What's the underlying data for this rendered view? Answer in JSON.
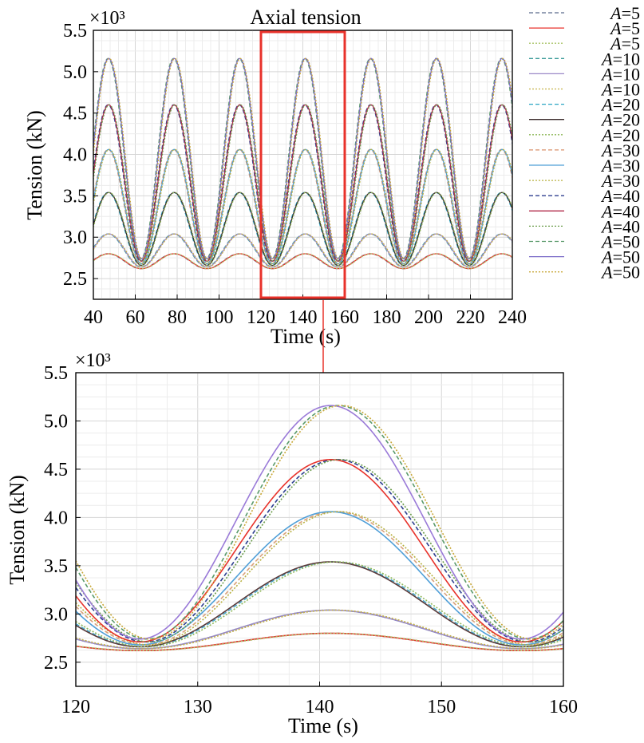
{
  "chart_data": [
    {
      "type": "line",
      "panel": "overview",
      "title": "Axial tension",
      "xlabel": "Time (s)",
      "ylabel": "Tension (kN)",
      "y_multiplier": "×10³",
      "xlim": [
        40,
        240
      ],
      "ylim": [
        2.25,
        5.5
      ],
      "xticks": [
        40,
        60,
        80,
        100,
        120,
        140,
        160,
        180,
        200,
        220,
        240
      ],
      "yticks": [
        2.5,
        3.0,
        3.5,
        4.0,
        4.5,
        5.0,
        5.5
      ],
      "ytick_labels": [
        "2.5",
        "3.0",
        "3.5",
        "4.0",
        "4.5",
        "5.0",
        "5.5"
      ],
      "grid": true,
      "period": 31.3,
      "peak_time": 140.9,
      "highlight_box": {
        "x_from": 120,
        "x_to": 160,
        "color": "#e8322b"
      },
      "series_peaks": [
        {
          "A": 5,
          "peak": 2.8,
          "trough": 2.62
        },
        {
          "A": 10,
          "peak": 3.04,
          "trough": 2.64
        },
        {
          "A": 20,
          "peak": 3.54,
          "trough": 2.66
        },
        {
          "A": 30,
          "peak": 4.06,
          "trough": 2.68
        },
        {
          "A": 40,
          "peak": 4.6,
          "trough": 2.71
        },
        {
          "A": 50,
          "peak": 5.16,
          "trough": 2.74
        }
      ]
    },
    {
      "type": "line",
      "panel": "zoom",
      "title": "",
      "xlabel": "Time (s)",
      "ylabel": "Tension (kN)",
      "y_multiplier": "×10³",
      "xlim": [
        120,
        160
      ],
      "ylim": [
        2.25,
        5.5
      ],
      "xticks": [
        120,
        130,
        140,
        150,
        160
      ],
      "yticks": [
        2.5,
        3.0,
        3.5,
        4.0,
        4.5,
        5.0,
        5.5
      ],
      "ytick_labels": [
        "2.5",
        "3.0",
        "3.5",
        "4.0",
        "4.5",
        "5.0",
        "5.5"
      ],
      "grid": true,
      "period": 31.3,
      "peak_time": 140.9,
      "series": [
        {
          "name": "A=5",
          "peak": 2.8,
          "trough": 2.62,
          "lines": [
            {
              "color": "#7e8fb7",
              "dash": "5,3",
              "shift": 0.0
            },
            {
              "color": "#e8322b",
              "dash": "",
              "shift": 0.0
            },
            {
              "color": "#a9c56a",
              "dash": "2,2",
              "shift": 0.2
            }
          ]
        },
        {
          "name": "A=10",
          "peak": 3.04,
          "trough": 2.64,
          "lines": [
            {
              "color": "#3e9d9b",
              "dash": "5,3",
              "shift": 0.0
            },
            {
              "color": "#9a88c8",
              "dash": "",
              "shift": 0.0
            },
            {
              "color": "#c4b24a",
              "dash": "2,2",
              "shift": 0.3
            }
          ]
        },
        {
          "name": "A=20",
          "peak": 3.54,
          "trough": 2.66,
          "lines": [
            {
              "color": "#4aa8c8",
              "dash": "5,3",
              "shift": 0.2
            },
            {
              "color": "#5a3a3a",
              "dash": "",
              "shift": 0.0
            },
            {
              "color": "#8fb85a",
              "dash": "2,2",
              "shift": 0.5
            }
          ]
        },
        {
          "name": "A=30",
          "peak": 4.06,
          "trough": 2.68,
          "lines": [
            {
              "color": "#d9a07a",
              "dash": "5,3",
              "shift": 0.4
            },
            {
              "color": "#4f9fd8",
              "dash": "",
              "shift": 0.0
            },
            {
              "color": "#b8b040",
              "dash": "2,2",
              "shift": 0.7
            }
          ]
        },
        {
          "name": "A=40",
          "peak": 4.6,
          "trough": 2.71,
          "lines": [
            {
              "color": "#2c3e8f",
              "dash": "5,3",
              "shift": 0.5
            },
            {
              "color": "#e8322b",
              "dash": "",
              "shift": 0.0
            },
            {
              "color": "#6a9c4a",
              "dash": "2,2",
              "shift": 0.8
            }
          ]
        },
        {
          "name": "A=50",
          "peak": 5.16,
          "trough": 2.74,
          "lines": [
            {
              "color": "#5a9a6a",
              "dash": "5,3",
              "shift": 0.6
            },
            {
              "color": "#9a7ad8",
              "dash": "",
              "shift": 0.0
            },
            {
              "color": "#c8a838",
              "dash": "2,2",
              "shift": 0.9
            }
          ]
        }
      ]
    }
  ],
  "legend": {
    "entries": [
      {
        "prefix": "A",
        "label": "=5",
        "color": "#5b6b8c",
        "dash": "5,3"
      },
      {
        "prefix": "A",
        "label": "=5",
        "color": "#e8322b",
        "dash": ""
      },
      {
        "prefix": "A",
        "label": "=5",
        "color": "#a9c56a",
        "dash": "2,2"
      },
      {
        "prefix": "A",
        "label": "=10",
        "color": "#3e9d9b",
        "dash": "5,3"
      },
      {
        "prefix": "A",
        "label": "=10",
        "color": "#9a88c8",
        "dash": ""
      },
      {
        "prefix": "A",
        "label": "=10",
        "color": "#c4b24a",
        "dash": "2,2"
      },
      {
        "prefix": "A",
        "label": "=20",
        "color": "#2aa6c4",
        "dash": "5,3"
      },
      {
        "prefix": "A",
        "label": "=20",
        "color": "#3a2a2a",
        "dash": ""
      },
      {
        "prefix": "A",
        "label": "=20",
        "color": "#8fb85a",
        "dash": "2,2"
      },
      {
        "prefix": "A",
        "label": "=30",
        "color": "#d9906a",
        "dash": "5,3"
      },
      {
        "prefix": "A",
        "label": "=30",
        "color": "#4f9fd8",
        "dash": ""
      },
      {
        "prefix": "A",
        "label": "=30",
        "color": "#b8b040",
        "dash": "2,2"
      },
      {
        "prefix": "A",
        "label": "=40",
        "color": "#2c3e8f",
        "dash": "5,3"
      },
      {
        "prefix": "A",
        "label": "=40",
        "color": "#b02a4a",
        "dash": ""
      },
      {
        "prefix": "A",
        "label": "=40",
        "color": "#6a9c4a",
        "dash": "2,2"
      },
      {
        "prefix": "A",
        "label": "=50",
        "color": "#5a9a6a",
        "dash": "5,3"
      },
      {
        "prefix": "A",
        "label": "=50",
        "color": "#7a6ac8",
        "dash": ""
      },
      {
        "prefix": "A",
        "label": "=50",
        "color": "#c8a838",
        "dash": "2,2"
      }
    ]
  },
  "arrow_color": "#e8322b"
}
